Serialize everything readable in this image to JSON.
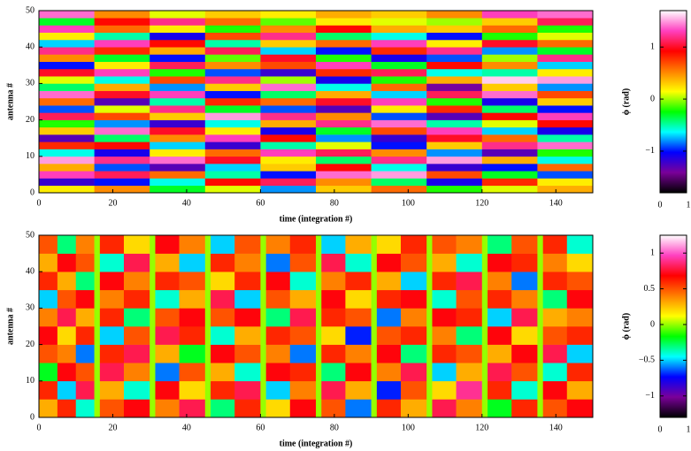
{
  "chart_data": [
    {
      "type": "heatmap",
      "xlabel": "time (integration #)",
      "ylabel": "antenna #",
      "xlim": [
        0,
        150
      ],
      "ylim": [
        0,
        50
      ],
      "xticks": [
        0,
        20,
        40,
        60,
        80,
        100,
        120,
        140
      ],
      "yticks": [
        0,
        10,
        20,
        30,
        40,
        50
      ],
      "xbins": [
        0,
        15,
        30,
        45,
        60,
        75,
        90,
        105,
        120,
        135,
        150
      ],
      "ybins": [
        0,
        2,
        4,
        6,
        8,
        10,
        12,
        14,
        16,
        18,
        20,
        22,
        24,
        26,
        28,
        30,
        32,
        34,
        36,
        38,
        40,
        42,
        44,
        46,
        48,
        50
      ],
      "z": [
        [
          0.2,
          0.5,
          -0.3,
          0.1,
          -0.8,
          0.3,
          0.6,
          -0.2,
          0.1,
          0.4
        ],
        [
          -1.2,
          -1.0,
          -0.6,
          0.9,
          1.1,
          0.5,
          -0.4,
          -1.1,
          0.8,
          0.2
        ],
        [
          1.3,
          1.1,
          0.6,
          -0.5,
          -1.0,
          1.4,
          1.5,
          0.7,
          -0.3,
          -0.9
        ],
        [
          0.4,
          -0.9,
          -1.3,
          -0.7,
          0.3,
          0.9,
          -0.6,
          -1.2,
          -1.0,
          0.6
        ],
        [
          1.5,
          1.2,
          1.4,
          1.0,
          0.2,
          -0.4,
          1.2,
          1.5,
          0.4,
          -0.6
        ],
        [
          -0.6,
          -1.1,
          0.2,
          0.6,
          1.3,
          1.1,
          0.5,
          -0.8,
          -1.3,
          -0.2
        ],
        [
          0.8,
          0.9,
          -0.7,
          -1.2,
          -0.5,
          0.1,
          -1.0,
          0.3,
          1.2,
          1.4
        ],
        [
          -1.3,
          -0.4,
          0.5,
          1.3,
          0.9,
          -0.8,
          -1.2,
          1.0,
          0.6,
          -0.5
        ],
        [
          0.3,
          1.4,
          1.0,
          0.2,
          -1.1,
          -0.3,
          0.7,
          1.3,
          -0.7,
          -1.1
        ],
        [
          -0.2,
          -0.8,
          -1.2,
          -0.6,
          0.4,
          1.2,
          1.4,
          -0.5,
          0.1,
          0.9
        ],
        [
          1.1,
          0.7,
          0.3,
          1.5,
          1.2,
          0.5,
          -0.9,
          -1.3,
          0.9,
          1.3
        ],
        [
          -0.9,
          0.1,
          1.2,
          -0.3,
          -0.9,
          -1.3,
          0.2,
          0.8,
          -0.4,
          -1.0
        ],
        [
          0.6,
          -1.3,
          -0.5,
          0.8,
          0.6,
          1.0,
          1.3,
          -0.2,
          -1.1,
          0.3
        ],
        [
          1.4,
          1.0,
          1.3,
          -1.0,
          -0.4,
          0.4,
          -0.7,
          1.1,
          1.4,
          0.7
        ],
        [
          -0.4,
          0.4,
          -0.8,
          0.3,
          1.4,
          -0.6,
          0.6,
          -1.4,
          0.3,
          -0.8
        ],
        [
          0.1,
          -0.6,
          0.7,
          1.2,
          0.0,
          -1.1,
          -0.2,
          0.4,
          1.6,
          1.5
        ],
        [
          1.0,
          1.3,
          -0.2,
          -0.9,
          -1.2,
          0.8,
          1.1,
          -0.6,
          -0.5,
          0.2
        ],
        [
          -1.0,
          0.2,
          1.1,
          0.5,
          0.7,
          1.3,
          -0.3,
          0.9,
          0.5,
          -0.7
        ],
        [
          0.5,
          -0.3,
          -1.0,
          -0.1,
          1.0,
          -0.2,
          -1.1,
          -0.9,
          0.0,
          1.2
        ],
        [
          1.2,
          0.8,
          0.4,
          1.1,
          -0.7,
          -1.0,
          0.8,
          1.2,
          -0.8,
          -0.3
        ],
        [
          -0.7,
          1.3,
          0.9,
          -0.5,
          0.3,
          0.6,
          1.3,
          0.2,
          1.0,
          0.6
        ],
        [
          0.2,
          -0.5,
          -1.1,
          0.7,
          1.2,
          -0.4,
          -0.6,
          -1.0,
          -0.2,
          0.1
        ],
        [
          1.3,
          0.6,
          0.2,
          -0.2,
          0.5,
          0.9,
          0.4,
          0.3,
          0.6,
          -0.2
        ],
        [
          -0.3,
          0.9,
          1.2,
          0.6,
          -0.1,
          0.2,
          0.1,
          0.0,
          0.3,
          1.1
        ],
        [
          1.4,
          0.5,
          0.1,
          0.3,
          0.2,
          0.4,
          0.3,
          0.5,
          1.3,
          1.4
        ]
      ],
      "colorscale": [
        "#000000",
        "#7a0099",
        "#0000ff",
        "#00ffff",
        "#00ff00",
        "#ffff00",
        "#ff8000",
        "#ff0000",
        "#ff40c0",
        "#ffffff"
      ],
      "colorbar_label": "ϕ (rad)",
      "zlim": [
        -1.8,
        1.7
      ],
      "zticks": [
        {
          "value": -1,
          "label": "−1"
        },
        0,
        1
      ],
      "colorbar_xlim": [
        0,
        1
      ],
      "colorbar_xticks": [
        0,
        1
      ]
    },
    {
      "type": "heatmap",
      "xlabel": "time (integration #)",
      "ylabel": "antenna #",
      "xlim": [
        0,
        150
      ],
      "ylim": [
        0,
        50
      ],
      "xticks": [
        0,
        20,
        40,
        60,
        80,
        100,
        120,
        140
      ],
      "yticks": [
        0,
        10,
        20,
        30,
        40,
        50
      ],
      "xbins": [
        0,
        5,
        10,
        15,
        16.5,
        23,
        30,
        31.5,
        38,
        45,
        46.5,
        53,
        60,
        61.5,
        68,
        75,
        76.5,
        83,
        90,
        91.5,
        98,
        105,
        106.5,
        113,
        120,
        121.5,
        128,
        135,
        136.5,
        143,
        150
      ],
      "ybins": [
        0,
        5,
        10,
        15,
        20,
        25,
        30,
        35,
        40,
        45,
        50
      ],
      "z": [
        [
          0.3,
          0.6,
          -0.4,
          0,
          0.5,
          0.7,
          0,
          0.4,
          0.8,
          0,
          -0.3,
          0.6,
          0,
          0.2,
          0.7,
          0,
          0.5,
          -0.6,
          0,
          0.6,
          0.3,
          0,
          0.8,
          0.4,
          0,
          -0.2,
          0.6,
          0,
          0.5,
          0.7
        ],
        [
          0.6,
          -0.5,
          0.8,
          0,
          0.3,
          -0.4,
          0,
          0.7,
          0.2,
          0,
          0.6,
          0.8,
          0,
          -0.5,
          0.4,
          0,
          0.8,
          0.3,
          0,
          -0.7,
          0.5,
          0,
          0.2,
          0.9,
          0,
          0.6,
          -0.4,
          0,
          0.7,
          0.3
        ],
        [
          -0.2,
          0.7,
          0.5,
          0,
          0.8,
          0.4,
          0,
          -0.6,
          0.5,
          0,
          0.3,
          -0.4,
          0,
          0.7,
          0.6,
          0,
          -0.3,
          0.7,
          0,
          0.4,
          0.8,
          0,
          -0.5,
          0.3,
          0,
          0.8,
          0.5,
          0,
          -0.4,
          0.6
        ],
        [
          0.5,
          0.4,
          -0.6,
          0,
          0.6,
          0.8,
          0,
          0.3,
          -0.2,
          0,
          0.7,
          0.5,
          0,
          0.4,
          -0.6,
          0,
          0.6,
          0.4,
          0,
          0.7,
          -0.3,
          0,
          0.6,
          0.5,
          0,
          0.3,
          0.7,
          0,
          0.8,
          -0.5
        ],
        [
          0.7,
          0.2,
          0.6,
          0,
          -0.5,
          0.5,
          0,
          0.8,
          0.6,
          0,
          -0.4,
          0.3,
          0,
          0.6,
          0.5,
          0,
          0.2,
          -0.7,
          0,
          0.5,
          0.6,
          0,
          0.4,
          -0.3,
          0,
          0.7,
          0.2,
          0,
          0.5,
          0.6
        ],
        [
          0.4,
          0.8,
          0.3,
          0,
          0.6,
          -0.3,
          0,
          0.5,
          0.7,
          0,
          0.5,
          0.7,
          0,
          -0.3,
          0.8,
          0,
          0.6,
          0.5,
          0,
          -0.6,
          0.4,
          0,
          0.7,
          0.6,
          0,
          -0.5,
          0.8,
          0,
          0.3,
          0.4
        ],
        [
          -0.5,
          0.5,
          0.7,
          0,
          0.4,
          0.6,
          0,
          -0.4,
          0.3,
          0,
          0.8,
          -0.5,
          0,
          0.5,
          0.3,
          0,
          0.7,
          0.2,
          0,
          0.6,
          0.7,
          0,
          -0.4,
          0.5,
          0,
          0.6,
          0.4,
          0,
          -0.3,
          0.7
        ],
        [
          0.6,
          0.3,
          -0.3,
          0,
          0.7,
          0.4,
          0,
          0.6,
          0.5,
          0,
          0.2,
          0.6,
          0,
          0.7,
          -0.4,
          0,
          0.4,
          0.6,
          0,
          0.3,
          -0.5,
          0,
          0.6,
          0.8,
          0,
          0.4,
          -0.6,
          0,
          0.6,
          0.5
        ],
        [
          0.3,
          0.7,
          0.5,
          0,
          -0.4,
          0.8,
          0,
          0.3,
          -0.5,
          0,
          0.6,
          0.4,
          0,
          -0.6,
          0.5,
          0,
          0.8,
          -0.4,
          0,
          0.7,
          0.5,
          0,
          0.3,
          -0.4,
          0,
          0.7,
          0.6,
          0,
          0.4,
          0.2
        ],
        [
          0.5,
          -0.3,
          0.4,
          0,
          0.6,
          0.2,
          0,
          0.7,
          0.4,
          0,
          -0.5,
          0.5,
          0,
          0.4,
          0.6,
          0,
          -0.5,
          0.3,
          0,
          0.2,
          0.6,
          0,
          0.5,
          0.4,
          0,
          -0.3,
          0.5,
          0,
          0.6,
          -0.4
        ]
      ],
      "colorscale": [
        "#000000",
        "#7a0099",
        "#0000ff",
        "#00ffff",
        "#00ff00",
        "#ffff00",
        "#ff8000",
        "#ff0000",
        "#ff40c0",
        "#ffffff"
      ],
      "colorbar_label": "ϕ (rad)",
      "zlim": [
        -1.3,
        1.25
      ],
      "zticks": [
        {
          "value": -1,
          "label": "−1"
        },
        {
          "value": -0.5,
          "label": "−0.5"
        },
        0,
        0.5,
        1
      ],
      "colorbar_xlim": [
        0,
        1
      ],
      "colorbar_xticks": [
        0,
        1
      ]
    }
  ]
}
